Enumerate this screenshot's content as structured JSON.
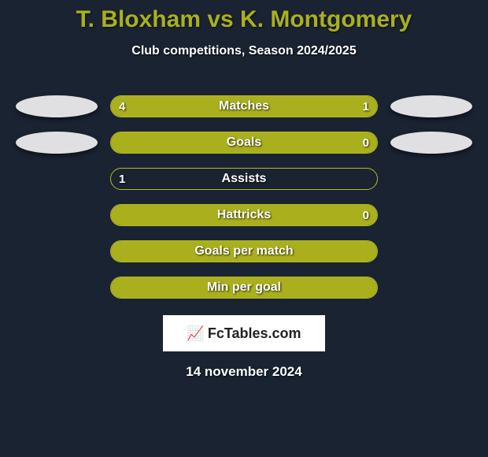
{
  "title": "T. Bloxham vs K. Montgomery",
  "subtitle": "Club competitions, Season 2024/2025",
  "bar_color": "#aab01d",
  "border_color": "#b4ba1f",
  "background_color": "#1a2332",
  "title_color": "#aab01d",
  "text_color": "#ffffff",
  "avatar_bg": "#e0e0e2",
  "title_fontsize": 30,
  "subtitle_fontsize": 16,
  "stat_fontsize": 16,
  "date_fontsize": 17,
  "bar_track_width": 340,
  "bar_track_height": 28,
  "avatar_width": 104,
  "avatar_height": 28,
  "stats": [
    {
      "label": "Matches",
      "left_val": "4",
      "right_val": "1",
      "left_pct": 80,
      "right_pct": 20,
      "show_left": true,
      "show_right": true,
      "show_avatars": true
    },
    {
      "label": "Goals",
      "left_val": "",
      "right_val": "0",
      "left_pct": 100,
      "right_pct": 0,
      "show_left": false,
      "show_right": true,
      "show_avatars": true
    },
    {
      "label": "Assists",
      "left_val": "1",
      "right_val": "",
      "left_pct": 0,
      "right_pct": 0,
      "show_left": true,
      "show_right": false,
      "show_avatars": false
    },
    {
      "label": "Hattricks",
      "left_val": "",
      "right_val": "0",
      "left_pct": 100,
      "right_pct": 0,
      "show_left": false,
      "show_right": true,
      "show_avatars": false
    },
    {
      "label": "Goals per match",
      "left_val": "",
      "right_val": "",
      "left_pct": 100,
      "right_pct": 0,
      "show_left": false,
      "show_right": false,
      "show_avatars": false
    },
    {
      "label": "Min per goal",
      "left_val": "",
      "right_val": "",
      "left_pct": 100,
      "right_pct": 0,
      "show_left": false,
      "show_right": false,
      "show_avatars": false
    }
  ],
  "logo": {
    "icon": "📈",
    "text": "FcTables.com"
  },
  "date": "14 november 2024"
}
